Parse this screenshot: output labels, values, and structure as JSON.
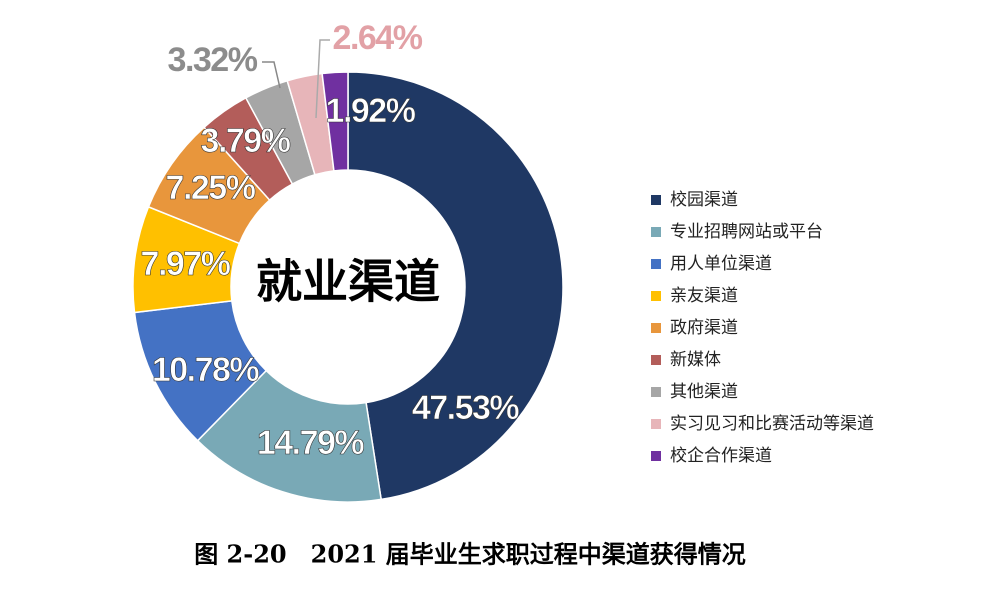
{
  "chart_data": {
    "type": "donut",
    "center_label": "就业渠道",
    "caption": "图 2-20　2021 届毕业生求职过程中渠道获得情况",
    "categories": [
      "校园渠道",
      "专业招聘网站或平台",
      "用人单位渠道",
      "亲友渠道",
      "政府渠道",
      "新媒体",
      "其他渠道",
      "实习见习和比赛活动等渠道",
      "校企合作渠道"
    ],
    "values": [
      47.53,
      14.79,
      10.78,
      7.97,
      7.25,
      3.79,
      3.32,
      2.64,
      1.92
    ],
    "value_labels": [
      "47.53%",
      "14.79%",
      "10.78%",
      "7.97%",
      "7.25%",
      "3.79%",
      "3.32%",
      "2.64%",
      "1.92%"
    ],
    "colors": [
      "#1f3864",
      "#79a9b6",
      "#4472c4",
      "#ffc000",
      "#e8963c",
      "#b35d5a",
      "#a6a6a6",
      "#e7b5b9",
      "#7030a0"
    ],
    "legend": "right"
  }
}
